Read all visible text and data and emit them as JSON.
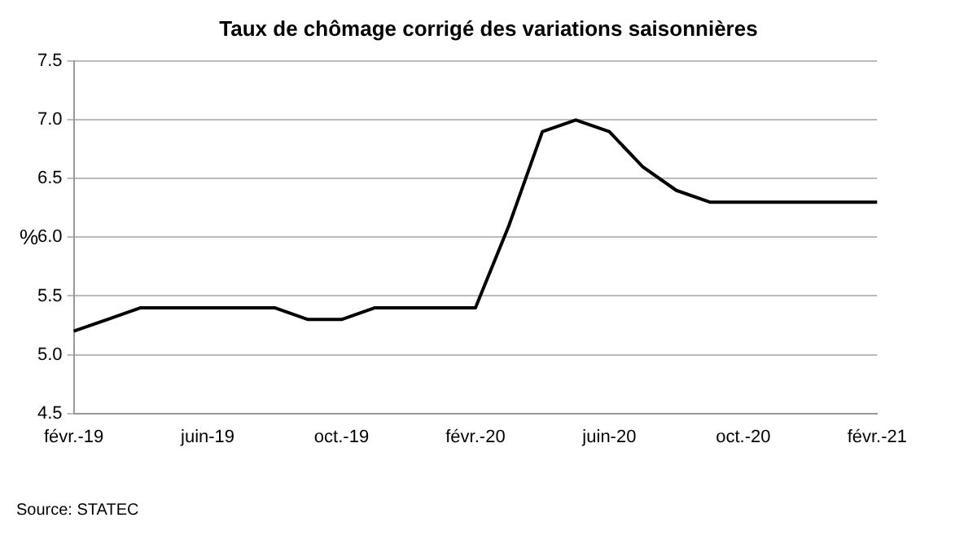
{
  "chart_data": {
    "type": "line",
    "title": "Taux de chômage corrigé des variations saisonnières",
    "ylabel": "%",
    "categories": [
      "févr.-19",
      null,
      null,
      null,
      "juin-19",
      null,
      null,
      null,
      "oct.-19",
      null,
      null,
      null,
      "févr.-20",
      null,
      null,
      null,
      "juin-20",
      null,
      null,
      null,
      "oct.-20",
      null,
      null,
      null,
      "févr.-21"
    ],
    "series": [
      {
        "color": "#000000",
        "values": [
          5.2,
          5.3,
          5.4,
          5.4,
          5.4,
          5.4,
          5.4,
          5.3,
          5.3,
          5.4,
          5.4,
          5.4,
          5.4,
          6.1,
          6.9,
          7.0,
          6.9,
          6.6,
          6.4,
          6.3,
          6.3,
          6.3,
          6.3,
          6.3,
          6.3
        ]
      }
    ],
    "ylim": [
      4.5,
      7.5
    ],
    "yticks": [
      {
        "value": 4.5,
        "label": "4.5"
      },
      {
        "value": 5,
        "label": "5.0"
      },
      {
        "value": 5.5,
        "label": "5.5"
      },
      {
        "value": 6,
        "label": "6.0"
      },
      {
        "value": 6.5,
        "label": "6.5"
      },
      {
        "value": 7,
        "label": "7.0"
      },
      {
        "value": 7.5,
        "label": "7.5"
      }
    ],
    "grid": "y",
    "marker": "none",
    "line_style": "solid",
    "legend": false,
    "annotations": [
      "Source: STATEC"
    ]
  }
}
